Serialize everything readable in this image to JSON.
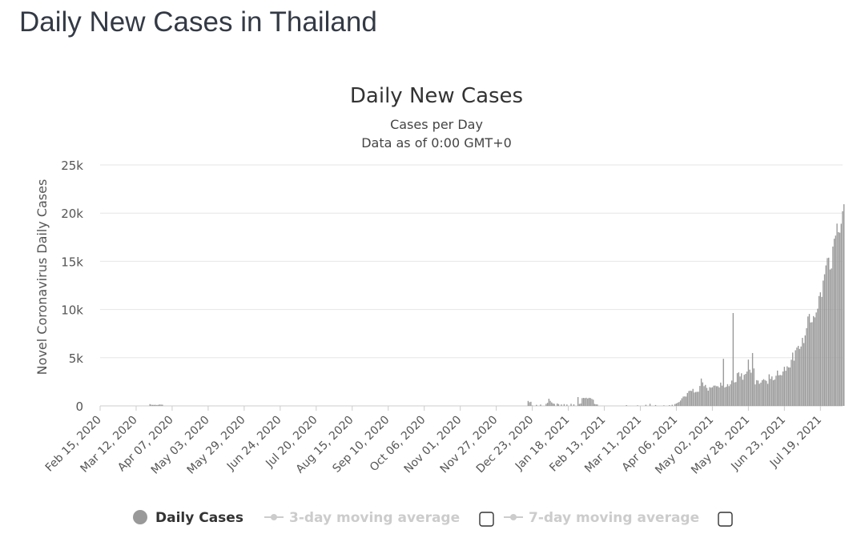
{
  "page": {
    "title": "Daily New Cases in Thailand"
  },
  "chart_data": {
    "type": "bar",
    "title": "Daily New Cases",
    "subtitle": "Cases per Day",
    "subtitle2": "Data as of 0:00 GMT+0",
    "xlabel": "",
    "ylabel": "Novel Coronavirus Daily Cases",
    "ylim": [
      0,
      25000
    ],
    "y_ticks": [
      0,
      5000,
      10000,
      15000,
      20000,
      25000
    ],
    "y_tick_labels": [
      "0",
      "5k",
      "10k",
      "15k",
      "20k",
      "25k"
    ],
    "x_start": "2020-02-15",
    "x_end": "2021-08-03",
    "x_tick_dates": [
      "2020-02-15",
      "2020-03-12",
      "2020-04-07",
      "2020-05-03",
      "2020-05-29",
      "2020-06-24",
      "2020-07-20",
      "2020-08-15",
      "2020-09-10",
      "2020-10-06",
      "2020-11-01",
      "2020-11-27",
      "2020-12-23",
      "2021-01-18",
      "2021-02-13",
      "2021-03-11",
      "2021-04-06",
      "2021-05-02",
      "2021-05-28",
      "2021-06-23",
      "2021-07-19"
    ],
    "x_tick_labels": [
      "Feb 15, 2020",
      "Mar 12, 2020",
      "Apr 07, 2020",
      "May 03, 2020",
      "May 29, 2020",
      "Jun 24, 2020",
      "Jul 20, 2020",
      "Aug 15, 2020",
      "Sep 10, 2020",
      "Oct 06, 2020",
      "Nov 01, 2020",
      "Nov 27, 2020",
      "Dec 23, 2020",
      "Jan 18, 2021",
      "Feb 13, 2021",
      "Mar 11, 2021",
      "Apr 06, 2021",
      "May 02, 2021",
      "May 28, 2021",
      "Jun 23, 2021",
      "Jul 19, 2021"
    ],
    "grid": true,
    "legend_position": "bottom",
    "series": [
      {
        "name": "Daily Cases",
        "color": "#999999",
        "points": [
          [
            "2020-03-22",
            188
          ],
          [
            "2020-03-23",
            122
          ],
          [
            "2020-03-24",
            106
          ],
          [
            "2020-03-25",
            107
          ],
          [
            "2020-03-26",
            111
          ],
          [
            "2020-03-27",
            91
          ],
          [
            "2020-03-28",
            109
          ],
          [
            "2020-03-29",
            143
          ],
          [
            "2020-03-30",
            136
          ],
          [
            "2020-03-31",
            127
          ],
          [
            "2020-12-20",
            516
          ],
          [
            "2020-12-21",
            382
          ],
          [
            "2020-12-22",
            427
          ],
          [
            "2020-12-23",
            46
          ],
          [
            "2020-12-26",
            110
          ],
          [
            "2020-12-29",
            144
          ],
          [
            "2021-01-02",
            216
          ],
          [
            "2021-01-03",
            315
          ],
          [
            "2021-01-04",
            745
          ],
          [
            "2021-01-05",
            527
          ],
          [
            "2021-01-06",
            365
          ],
          [
            "2021-01-07",
            250
          ],
          [
            "2021-01-08",
            212
          ],
          [
            "2021-01-10",
            249
          ],
          [
            "2021-01-11",
            187
          ],
          [
            "2021-01-13",
            150
          ],
          [
            "2021-01-15",
            188
          ],
          [
            "2021-01-17",
            145
          ],
          [
            "2021-01-20",
            220
          ],
          [
            "2021-01-22",
            165
          ],
          [
            "2021-01-25",
            914
          ],
          [
            "2021-01-26",
            200
          ],
          [
            "2021-01-27",
            250
          ],
          [
            "2021-01-28",
            802
          ],
          [
            "2021-01-29",
            832
          ],
          [
            "2021-01-30",
            805
          ],
          [
            "2021-01-31",
            844
          ],
          [
            "2021-02-01",
            770
          ],
          [
            "2021-02-02",
            838
          ],
          [
            "2021-02-03",
            811
          ],
          [
            "2021-02-04",
            723
          ],
          [
            "2021-02-05",
            642
          ],
          [
            "2021-02-06",
            200
          ],
          [
            "2021-02-07",
            160
          ],
          [
            "2021-02-08",
            150
          ],
          [
            "2021-03-01",
            80
          ],
          [
            "2021-03-09",
            60
          ],
          [
            "2021-03-15",
            120
          ],
          [
            "2021-03-18",
            220
          ],
          [
            "2021-03-22",
            90
          ],
          [
            "2021-03-28",
            60
          ],
          [
            "2021-04-01",
            80
          ],
          [
            "2021-04-03",
            120
          ],
          [
            "2021-04-05",
            194
          ],
          [
            "2021-04-06",
            250
          ],
          [
            "2021-04-07",
            334
          ],
          [
            "2021-04-08",
            405
          ],
          [
            "2021-04-09",
            559
          ],
          [
            "2021-04-10",
            789
          ],
          [
            "2021-04-11",
            967
          ],
          [
            "2021-04-12",
            985
          ],
          [
            "2021-04-13",
            965
          ],
          [
            "2021-04-14",
            1335
          ],
          [
            "2021-04-15",
            1543
          ],
          [
            "2021-04-16",
            1582
          ],
          [
            "2021-04-17",
            1547
          ],
          [
            "2021-04-18",
            1767
          ],
          [
            "2021-04-19",
            1390
          ],
          [
            "2021-04-20",
            1443
          ],
          [
            "2021-04-21",
            1458
          ],
          [
            "2021-04-22",
            1470
          ],
          [
            "2021-04-23",
            2070
          ],
          [
            "2021-04-24",
            2839
          ],
          [
            "2021-04-25",
            2438
          ],
          [
            "2021-04-26",
            2048
          ],
          [
            "2021-04-27",
            2179
          ],
          [
            "2021-04-28",
            1871
          ],
          [
            "2021-04-29",
            1583
          ],
          [
            "2021-04-30",
            1940
          ],
          [
            "2021-05-01",
            1891
          ],
          [
            "2021-05-02",
            1940
          ],
          [
            "2021-05-03",
            2101
          ],
          [
            "2021-05-04",
            2112
          ],
          [
            "2021-05-05",
            2041
          ],
          [
            "2021-05-06",
            2044
          ],
          [
            "2021-05-07",
            1911
          ],
          [
            "2021-05-08",
            2419
          ],
          [
            "2021-05-09",
            2101
          ],
          [
            "2021-05-10",
            4887
          ],
          [
            "2021-05-11",
            1919
          ],
          [
            "2021-05-12",
            1983
          ],
          [
            "2021-05-13",
            2256
          ],
          [
            "2021-05-14",
            2052
          ],
          [
            "2021-05-15",
            2236
          ],
          [
            "2021-05-16",
            2630
          ],
          [
            "2021-05-17",
            9635
          ],
          [
            "2021-05-18",
            2438
          ],
          [
            "2021-05-19",
            2474
          ],
          [
            "2021-05-20",
            3394
          ],
          [
            "2021-05-21",
            3481
          ],
          [
            "2021-05-22",
            3052
          ],
          [
            "2021-05-23",
            3382
          ],
          [
            "2021-05-24",
            2713
          ],
          [
            "2021-05-25",
            3226
          ],
          [
            "2021-05-26",
            3323
          ],
          [
            "2021-05-27",
            3563
          ],
          [
            "2021-05-28",
            4803
          ],
          [
            "2021-05-29",
            3759
          ],
          [
            "2021-05-30",
            3440
          ],
          [
            "2021-05-31",
            5485
          ],
          [
            "2021-06-01",
            3886
          ],
          [
            "2021-06-02",
            2230
          ],
          [
            "2021-06-03",
            2671
          ],
          [
            "2021-06-04",
            2631
          ],
          [
            "2021-06-05",
            2300
          ],
          [
            "2021-06-06",
            2419
          ],
          [
            "2021-06-07",
            2662
          ],
          [
            "2021-06-08",
            2773
          ],
          [
            "2021-06-09",
            2680
          ],
          [
            "2021-06-10",
            2602
          ],
          [
            "2021-06-11",
            2290
          ],
          [
            "2021-06-12",
            3277
          ],
          [
            "2021-06-13",
            2804
          ],
          [
            "2021-06-14",
            3058
          ],
          [
            "2021-06-15",
            2662
          ],
          [
            "2021-06-16",
            2733
          ],
          [
            "2021-06-17",
            3129
          ],
          [
            "2021-06-18",
            3667
          ],
          [
            "2021-06-19",
            3174
          ],
          [
            "2021-06-20",
            3211
          ],
          [
            "2021-06-21",
            3175
          ],
          [
            "2021-06-22",
            3566
          ],
          [
            "2021-06-23",
            4059
          ],
          [
            "2021-06-24",
            3644
          ],
          [
            "2021-06-25",
            4108
          ],
          [
            "2021-06-26",
            3996
          ],
          [
            "2021-06-27",
            3984
          ],
          [
            "2021-06-28",
            4786
          ],
          [
            "2021-06-29",
            5533
          ],
          [
            "2021-06-30",
            4694
          ],
          [
            "2021-07-01",
            5775
          ],
          [
            "2021-07-02",
            6050
          ],
          [
            "2021-07-03",
            6230
          ],
          [
            "2021-07-04",
            5910
          ],
          [
            "2021-07-05",
            6166
          ],
          [
            "2021-07-06",
            7058
          ],
          [
            "2021-07-07",
            6519
          ],
          [
            "2021-07-08",
            7312
          ],
          [
            "2021-07-09",
            8069
          ],
          [
            "2021-07-10",
            9276
          ],
          [
            "2021-07-11",
            9539
          ],
          [
            "2021-07-12",
            8656
          ],
          [
            "2021-07-13",
            8685
          ],
          [
            "2021-07-14",
            9317
          ],
          [
            "2021-07-15",
            9186
          ],
          [
            "2021-07-16",
            9692
          ],
          [
            "2021-07-17",
            10082
          ],
          [
            "2021-07-18",
            11397
          ],
          [
            "2021-07-19",
            11784
          ],
          [
            "2021-07-20",
            11305
          ],
          [
            "2021-07-21",
            13002
          ],
          [
            "2021-07-22",
            13655
          ],
          [
            "2021-07-23",
            14575
          ],
          [
            "2021-07-24",
            15335
          ],
          [
            "2021-07-25",
            15376
          ],
          [
            "2021-07-26",
            14150
          ],
          [
            "2021-07-27",
            14260
          ],
          [
            "2021-07-28",
            16533
          ],
          [
            "2021-07-29",
            17345
          ],
          [
            "2021-07-30",
            17669
          ],
          [
            "2021-07-31",
            18912
          ],
          [
            "2021-08-01",
            18027
          ],
          [
            "2021-08-02",
            17970
          ],
          [
            "2021-08-03",
            18901
          ],
          [
            "2021-08-04",
            20200
          ],
          [
            "2021-08-05",
            20920
          ]
        ]
      },
      {
        "name": "3-day moving average",
        "color": "#cccccc"
      },
      {
        "name": "7-day moving average",
        "color": "#cccccc"
      }
    ]
  }
}
